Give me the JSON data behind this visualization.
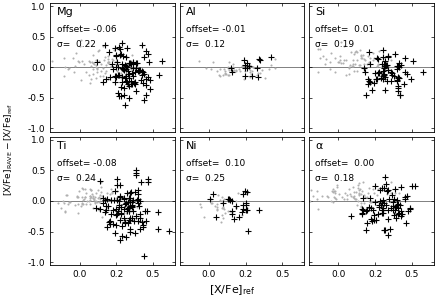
{
  "subplots": [
    {
      "label": "Mg",
      "offset_str": "offset= -0.06",
      "sigma_str": "σ=  0.22",
      "gray_params": [
        0.15,
        0.05,
        0.13,
        0.16,
        80
      ],
      "black_params": [
        0.32,
        -0.05,
        0.09,
        0.22,
        100
      ]
    },
    {
      "label": "Al",
      "offset_str": "offset= -0.01",
      "sigma_str": "σ=  0.12",
      "gray_params": [
        0.18,
        -0.04,
        0.12,
        0.08,
        50
      ],
      "black_params": [
        0.28,
        0.0,
        0.06,
        0.07,
        15
      ]
    },
    {
      "label": "Si",
      "offset_str": "offset=  0.01",
      "sigma_str": "σ=  0.19",
      "gray_params": [
        0.1,
        0.12,
        0.13,
        0.1,
        70
      ],
      "black_params": [
        0.35,
        -0.1,
        0.09,
        0.18,
        70
      ]
    },
    {
      "label": "Ti",
      "offset_str": "offset= -0.08",
      "sigma_str": "σ=  0.24",
      "gray_params": [
        0.1,
        0.02,
        0.13,
        0.12,
        90
      ],
      "black_params": [
        0.32,
        -0.12,
        0.09,
        0.25,
        110
      ]
    },
    {
      "label": "Ni",
      "offset_str": "offset=  0.10",
      "sigma_str": "σ=  0.25",
      "gray_params": [
        0.1,
        -0.08,
        0.1,
        0.1,
        35
      ],
      "black_params": [
        0.18,
        -0.05,
        0.08,
        0.18,
        25
      ]
    },
    {
      "label": "α",
      "offset_str": "offset=  0.00",
      "sigma_str": "σ=  0.18",
      "gray_params": [
        0.1,
        0.08,
        0.13,
        0.1,
        75
      ],
      "black_params": [
        0.32,
        -0.08,
        0.09,
        0.18,
        80
      ]
    }
  ],
  "xlim": [
    -0.2,
    0.65
  ],
  "ylim": [
    -1.05,
    1.05
  ],
  "xticks": [
    0.0,
    0.25,
    0.5
  ],
  "yticks": [
    -1.0,
    -0.5,
    0.0,
    0.5,
    1.0
  ],
  "xlabel": "[X/Fe]$_{\\rm ref}$",
  "gray_color": "#b0b0b0",
  "black_color": "#000000",
  "hline_color": "#808080",
  "gray_ms": 3,
  "black_ms": 5,
  "label_fontsize": 8,
  "annot_fontsize": 6.5,
  "tick_fontsize": 6.5
}
